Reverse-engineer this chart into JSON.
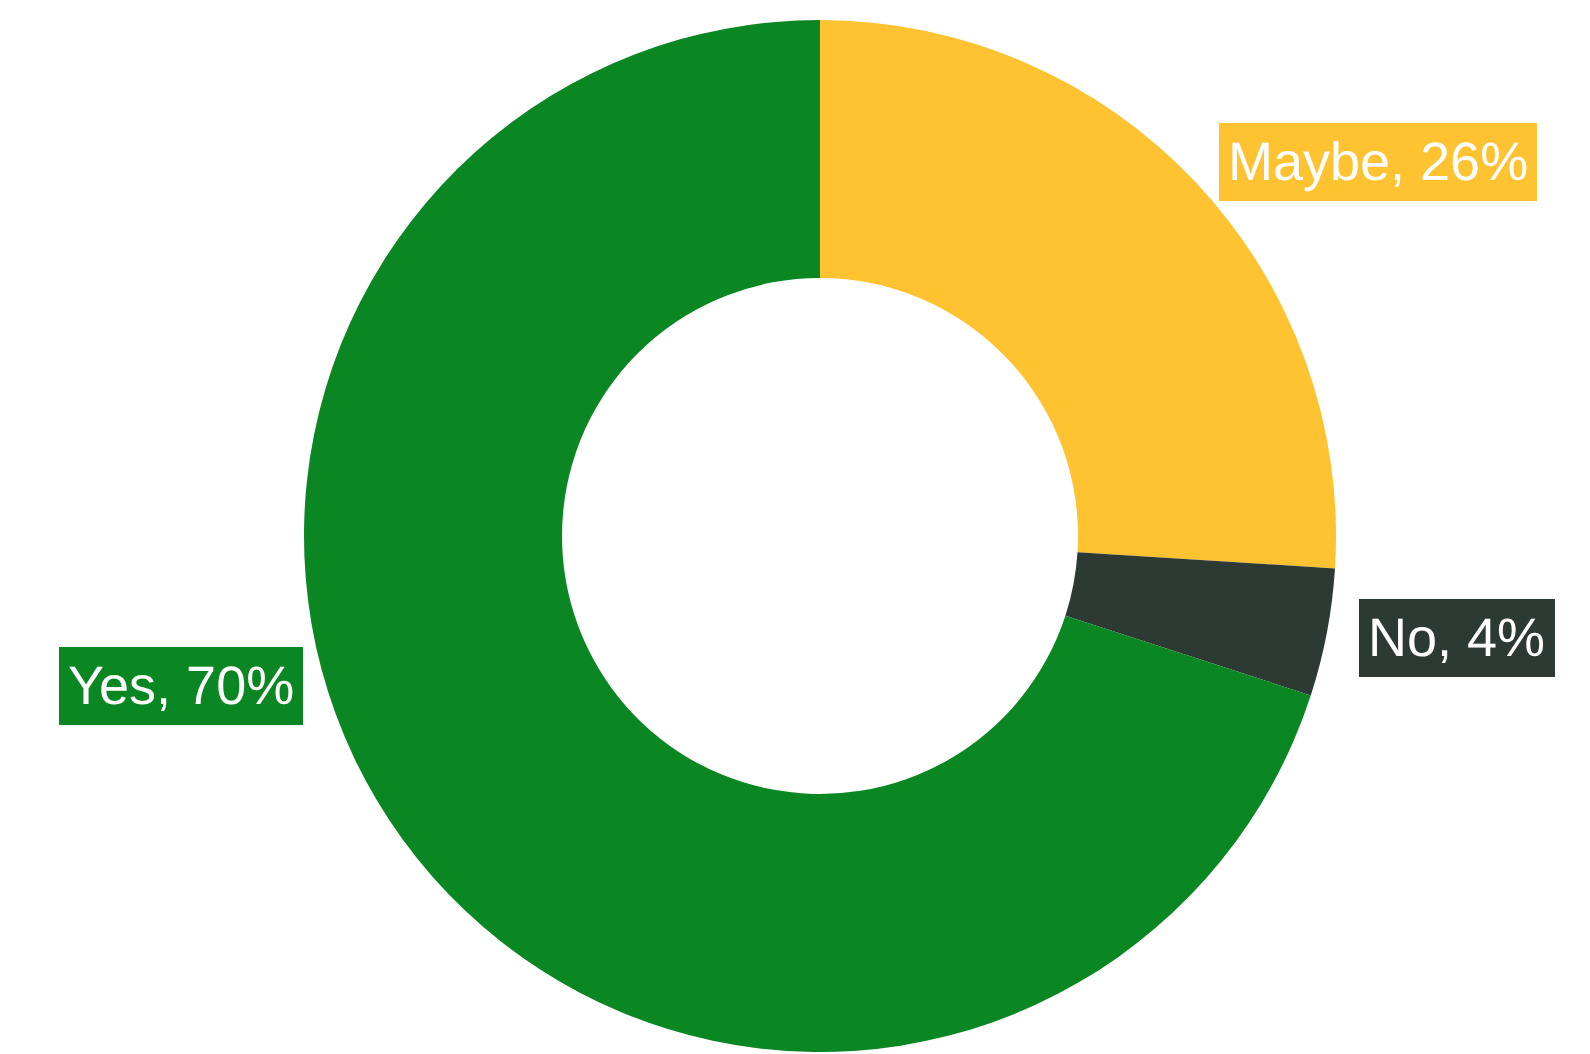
{
  "chart_data": {
    "type": "donut",
    "values": [
      26,
      4,
      70
    ],
    "colors": [
      "#ffc230",
      "#2d3a33",
      "#0a8722"
    ],
    "value_labels": [
      "Maybe, 26%",
      "No, 4%",
      "Yes, 70%"
    ],
    "legend": false
  }
}
